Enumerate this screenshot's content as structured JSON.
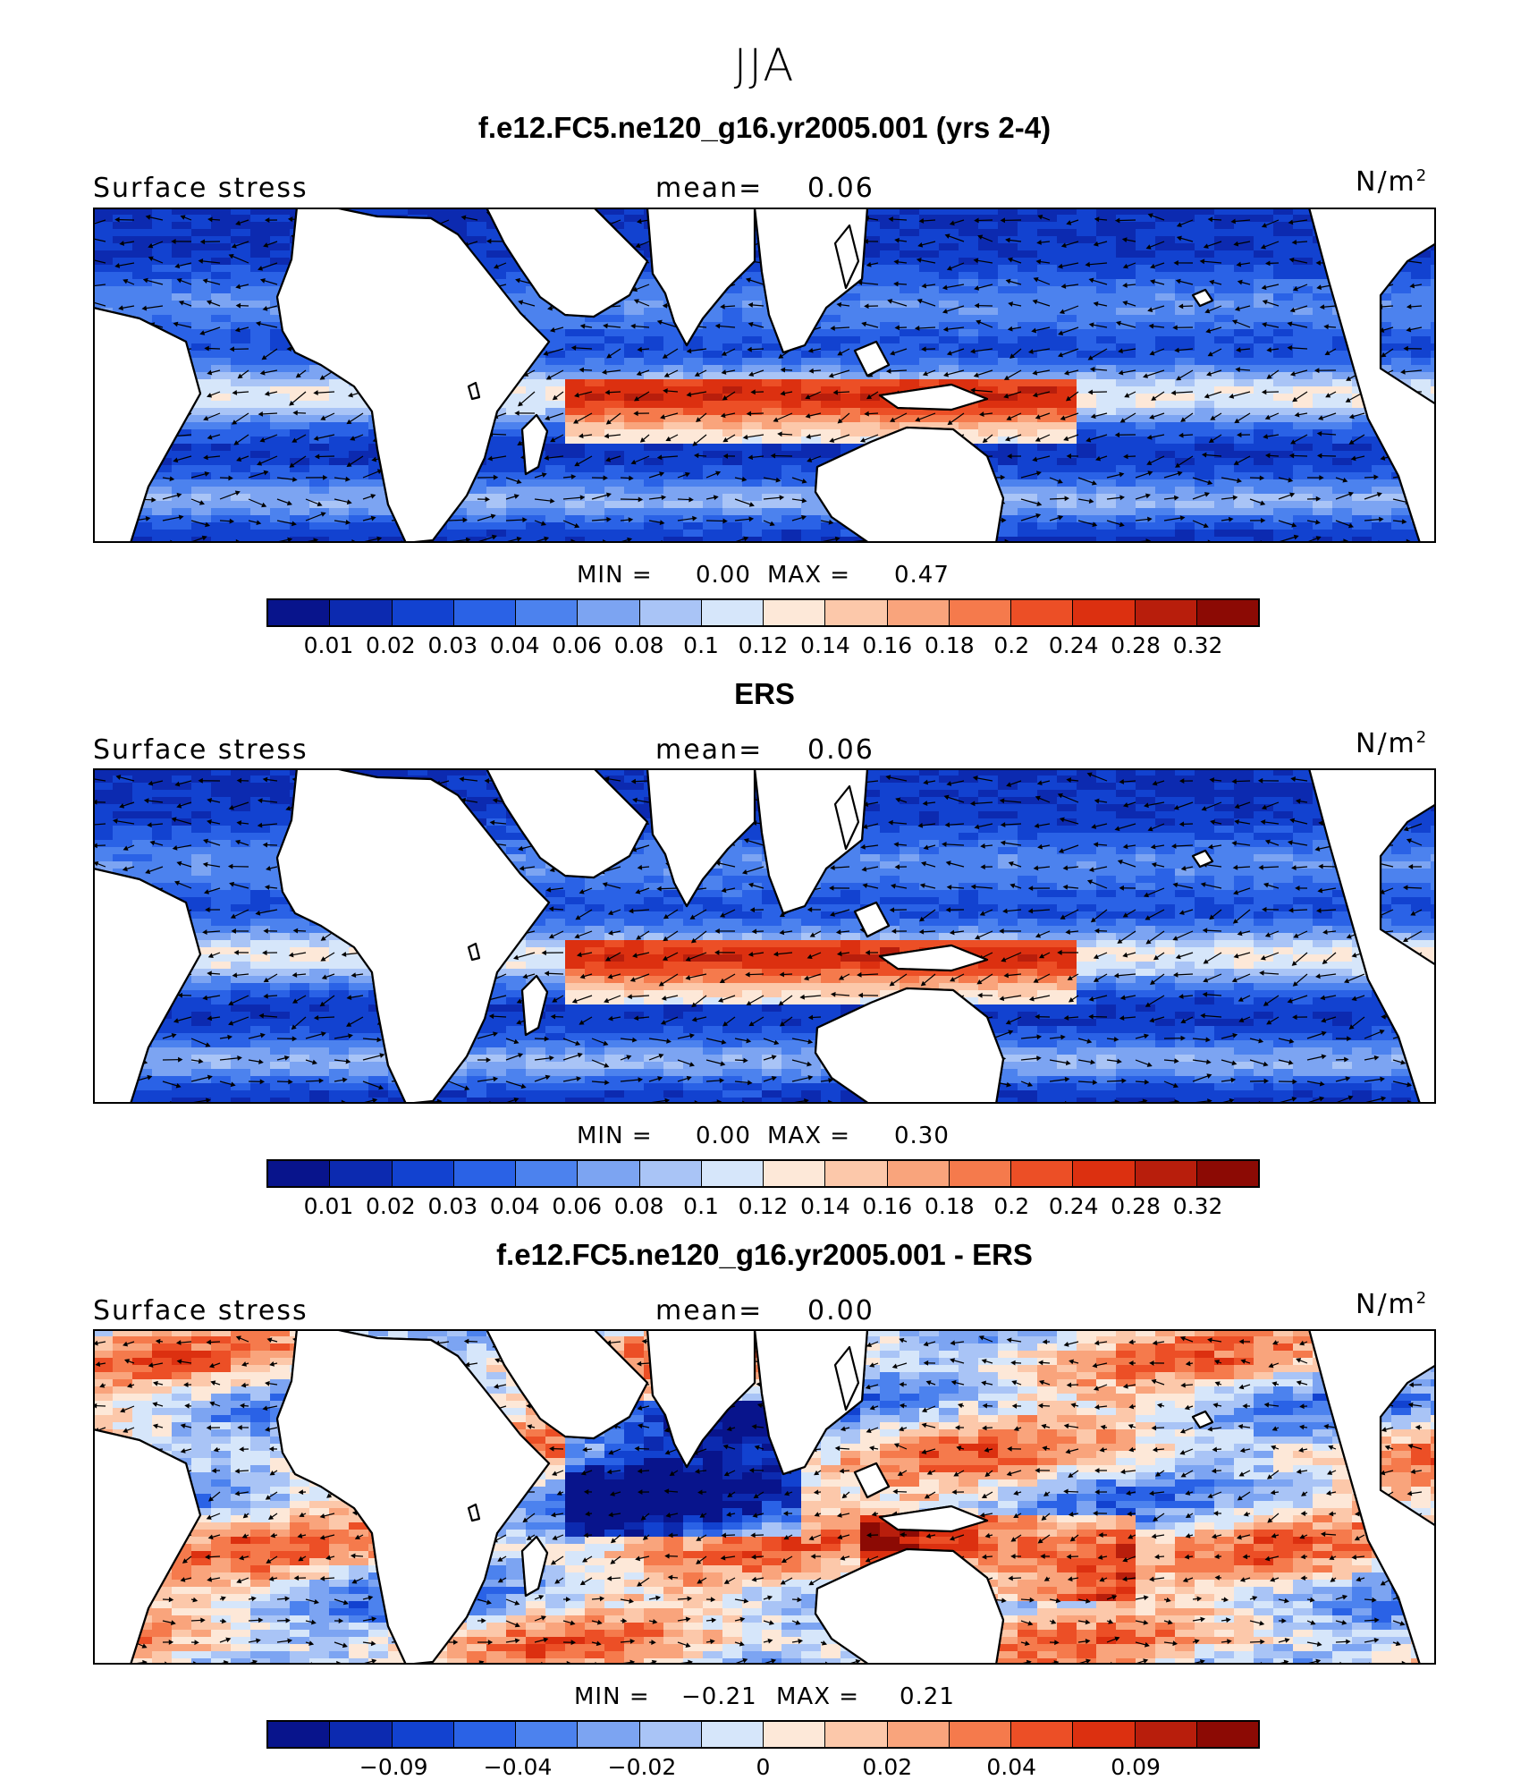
{
  "season": "JJA",
  "colors": {
    "scale": [
      "#08148c",
      "#0c2ab0",
      "#1242d0",
      "#2a62e6",
      "#4c82ee",
      "#7ca4f2",
      "#a9c4f6",
      "#d6e6fa",
      "#fde8d8",
      "#fcc8aa",
      "#f9a47c",
      "#f57a4c",
      "#ec4f26",
      "#dc3010",
      "#b81e0c",
      "#8c0a04"
    ],
    "land": "#ffffff",
    "coast": "#000000"
  },
  "panels": [
    {
      "title": "f.e12.FC5.ne120_g16.yr2005.001 (yrs 2-4)",
      "variable": "Surface stress",
      "mean_label": "mean=",
      "mean_value": "0.06",
      "units": "N/m",
      "units_exp": "2",
      "min_label": "MIN =",
      "min_value": "0.00",
      "max_label": "MAX =",
      "max_value": "0.47",
      "colorbar_ticks": [
        "0.01",
        "0.02",
        "0.03",
        "0.04",
        "0.06",
        "0.08",
        "0.1",
        "0.12",
        "0.14",
        "0.16",
        "0.18",
        "0.2",
        "0.24",
        "0.28",
        "0.32"
      ]
    },
    {
      "title": "ERS",
      "variable": "Surface stress",
      "mean_label": "mean=",
      "mean_value": "0.06",
      "units": "N/m",
      "units_exp": "2",
      "min_label": "MIN =",
      "min_value": "0.00",
      "max_label": "MAX =",
      "max_value": "0.30",
      "colorbar_ticks": [
        "0.01",
        "0.02",
        "0.03",
        "0.04",
        "0.06",
        "0.08",
        "0.1",
        "0.12",
        "0.14",
        "0.16",
        "0.18",
        "0.2",
        "0.24",
        "0.28",
        "0.32"
      ]
    },
    {
      "title": "f.e12.FC5.ne120_g16.yr2005.001 - ERS",
      "variable": "Surface stress",
      "mean_label": "mean=",
      "mean_value": "0.00",
      "units": "N/m",
      "units_exp": "2",
      "min_label": "MIN =",
      "min_value": "−0.21",
      "max_label": "MAX =",
      "max_value": "0.21",
      "colorbar_ticks": [
        "−0.09",
        "−0.04",
        "−0.02",
        "0",
        "0.02",
        "0.04",
        "0.09"
      ]
    }
  ]
}
